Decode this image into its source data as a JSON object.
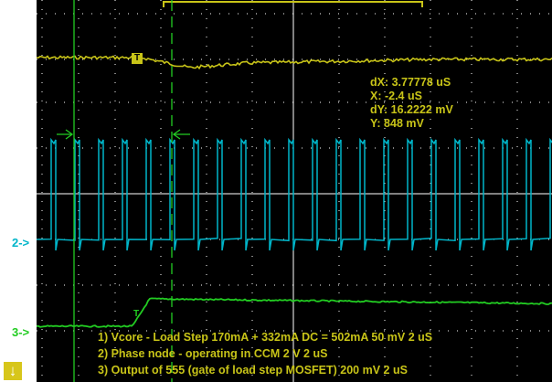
{
  "channel_markers": {
    "ch2": "2->",
    "ch3": "3->"
  },
  "trigger_marker": "T",
  "cursor_readouts": [
    {
      "label": "dX: 3.77778 uS"
    },
    {
      "label": "X: -2.4 uS"
    },
    {
      "label": "dY: 16.2222 mV"
    },
    {
      "label": "Y: 848 mV"
    }
  ],
  "legend": [
    "1) Vcore - Load Step 170mA + 332mA DC = 502mA  50 mV   2 uS",
    "2) Phase node - operating in CCM  2  V   2 uS",
    "3) Output of 555 (gate of load step MOSFET)  200 mV   2 uS"
  ],
  "down_arrow_button": "↓",
  "colors": {
    "ch1": "#c8c418",
    "ch2": "#00b5c9",
    "ch3": "#22cc22",
    "cursor": "#22cc22",
    "grid": "#ffffff",
    "background": "#000000"
  }
}
